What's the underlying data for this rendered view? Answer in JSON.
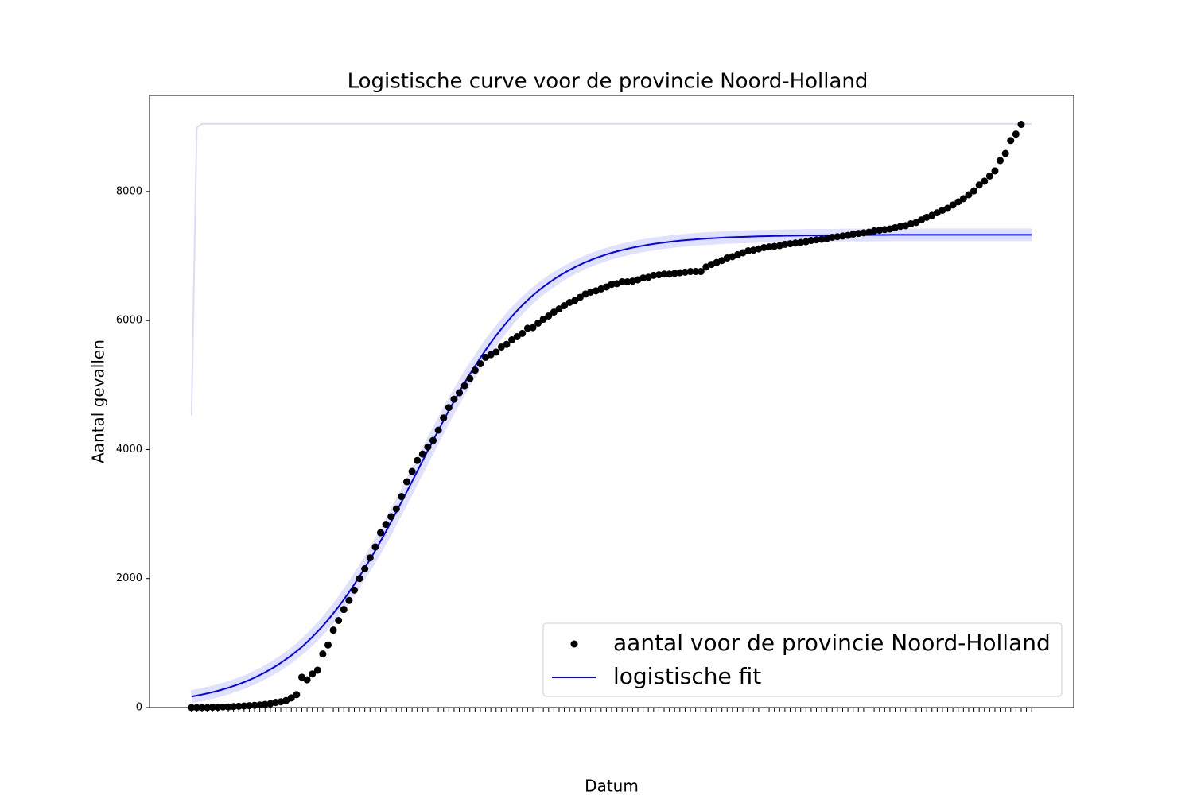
{
  "chart_data": {
    "type": "line",
    "title": "Logistische curve voor de provincie Noord-Holland",
    "x_label": "Datum",
    "y_label": "Aantal gevallen",
    "ylim": [
      0,
      9490
    ],
    "yticks": [
      0,
      2000,
      4000,
      6000,
      8000
    ],
    "legend": "lower right",
    "categories": [
      null,
      null,
      null,
      null,
      null,
      null,
      null,
      null,
      null,
      null,
      null,
      null,
      null,
      null,
      null,
      null,
      null,
      null,
      null,
      null,
      null,
      null,
      null,
      null,
      null,
      null,
      null,
      null,
      null,
      null,
      null,
      null,
      null,
      null,
      null,
      null,
      null,
      null,
      null,
      null,
      null,
      null,
      null,
      null,
      null,
      null,
      null,
      null,
      null,
      null,
      null,
      null,
      null,
      null,
      null,
      null,
      null,
      null,
      null,
      null,
      null,
      null,
      null,
      null,
      null,
      null,
      null,
      null,
      null,
      null,
      null,
      null,
      null,
      null,
      null,
      null,
      null,
      null,
      null,
      null,
      null,
      null,
      null,
      null,
      null,
      null,
      null,
      null,
      null,
      null,
      null,
      null,
      null,
      null,
      null,
      null,
      null,
      null,
      null,
      null,
      null,
      null,
      null,
      null,
      null,
      null,
      null,
      null,
      null,
      null,
      null,
      null,
      null,
      null,
      null,
      null,
      null,
      null,
      null,
      null,
      null,
      null,
      null,
      null,
      null,
      null,
      null,
      null,
      null,
      null,
      null,
      null,
      null,
      null,
      null,
      null,
      null,
      null,
      null,
      null,
      null,
      null,
      null,
      null,
      null,
      null,
      null,
      null,
      null,
      null,
      null,
      null,
      null,
      null,
      null,
      null,
      null,
      null,
      null,
      null,
      null
    ],
    "series": [
      {
        "values": [
          4530,
          8990,
          9050,
          9050,
          9050,
          9050,
          9050,
          9050,
          9050,
          9050,
          9050,
          9050,
          9050,
          9050,
          9050,
          9050,
          9050,
          9050,
          9050,
          9050,
          9050,
          9050,
          9050,
          9050,
          9050,
          9050,
          9050,
          9050,
          9050,
          9050,
          9050,
          9050,
          9050,
          9050,
          9050,
          9050,
          9050,
          9050,
          9050,
          9050,
          9050,
          9050,
          9050,
          9050,
          9050,
          9050,
          9050,
          9050,
          9050,
          9050,
          9050,
          9050,
          9050,
          9050,
          9050,
          9050,
          9050,
          9050,
          9050,
          9050,
          9050,
          9050,
          9050,
          9050,
          9050,
          9050,
          9050,
          9050,
          9050,
          9050,
          9050,
          9050,
          9050,
          9050,
          9050,
          9050,
          9050,
          9050,
          9050,
          9050,
          9050,
          9050,
          9050,
          9050,
          9050,
          9050,
          9050,
          9050,
          9050,
          9050,
          9050,
          9050,
          9050,
          9050,
          9050,
          9050,
          9050,
          9050,
          9050,
          9050,
          9050,
          9050,
          9050,
          9050,
          9050,
          9050,
          9050,
          9050,
          9050,
          9050,
          9050,
          9050,
          9050,
          9050,
          9050,
          9050,
          9050,
          9050,
          9050,
          9050,
          9050,
          9050,
          9050,
          9050,
          9050,
          9050,
          9050,
          9050,
          9050,
          9050,
          9050,
          9050,
          9050,
          9050,
          9050,
          9050,
          9050,
          9050,
          9050,
          9050,
          9050,
          9050,
          9050,
          9050,
          9050,
          9050,
          9050,
          9050,
          9050,
          9050,
          9050,
          9050,
          9050,
          9050,
          9050,
          9050,
          9050,
          9050,
          9050,
          9050,
          9050
        ],
        "color": "#dcdcf8",
        "mode": "line"
      },
      {
        "name": "logistische fit",
        "color": "#0000ff",
        "mode": "line",
        "values": [
          170,
          185,
          201,
          219,
          238,
          259,
          282,
          306,
          333,
          362,
          393,
          427,
          464,
          504,
          546,
          592,
          639,
          692,
          749,
          808,
          872,
          939,
          1015,
          1094,
          1178,
          1266,
          1360,
          1460,
          1563,
          1674,
          1788,
          1909,
          2036,
          2162,
          2297,
          2435,
          2581,
          2725,
          2880,
          3034,
          3190,
          3347,
          3506,
          3665,
          3824,
          3983,
          4140,
          4296,
          4450,
          4605,
          4749,
          4895,
          5033,
          5168,
          5294,
          5421,
          5542,
          5656,
          5767,
          5870,
          5970,
          6064,
          6152,
          6236,
          6315,
          6391,
          6458,
          6522,
          6581,
          6638,
          6691,
          6738,
          6784,
          6826,
          6866,
          6903,
          6937,
          6968,
          6997,
          7024,
          7048,
          7071,
          7092,
          7111,
          7129,
          7145,
          7160,
          7174,
          7187,
          7199,
          7209,
          7219,
          7229,
          7237,
          7245,
          7252,
          7258,
          7264,
          7270,
          7275,
          7279,
          7284,
          7288,
          7291,
          7294,
          7297,
          7300,
          7303,
          7305,
          7307,
          7309,
          7311,
          7312,
          7314,
          7315,
          7316,
          7318,
          7319,
          7320,
          7320,
          7321,
          7322,
          7323,
          7323,
          7324,
          7325,
          7325,
          7326,
          7326,
          7326,
          7327,
          7327,
          7327,
          7328,
          7328,
          7328,
          7328,
          7329,
          7329,
          7329,
          7329,
          7329,
          7329,
          7329,
          7329,
          7329,
          7329,
          7329,
          7329,
          7329,
          7329,
          7329,
          7329,
          7329,
          7329,
          7329,
          7329,
          7329,
          7329,
          7329,
          7329
        ]
      },
      {
        "name": "aantal voor de provincie Noord-Holland",
        "color": "#000000",
        "mode": "markers",
        "values": [
          0,
          0,
          0,
          0,
          5,
          5,
          10,
          10,
          15,
          20,
          25,
          30,
          35,
          40,
          50,
          60,
          80,
          90,
          110,
          150,
          200,
          470,
          430,
          520,
          580,
          830,
          970,
          1200,
          1350,
          1520,
          1660,
          1820,
          2000,
          2150,
          2320,
          2490,
          2710,
          2840,
          2960,
          3080,
          3270,
          3500,
          3660,
          3830,
          3930,
          4040,
          4140,
          4300,
          4490,
          4650,
          4780,
          4880,
          4990,
          5100,
          5230,
          5330,
          5430,
          5470,
          5510,
          5590,
          5630,
          5700,
          5750,
          5800,
          5880,
          5890,
          5960,
          6020,
          6070,
          6130,
          6180,
          6230,
          6280,
          6310,
          6360,
          6410,
          6440,
          6460,
          6490,
          6520,
          6560,
          6570,
          6600,
          6600,
          6610,
          6630,
          6660,
          6670,
          6700,
          6710,
          6720,
          6720,
          6730,
          6740,
          6750,
          6760,
          6760,
          6760,
          6830,
          6870,
          6900,
          6930,
          6970,
          6990,
          7020,
          7050,
          7080,
          7090,
          7110,
          7130,
          7140,
          7150,
          7160,
          7180,
          7190,
          7200,
          7210,
          7220,
          7240,
          7250,
          7260,
          7270,
          7290,
          7300,
          7310,
          7320,
          7340,
          7350,
          7360,
          7370,
          7390,
          7400,
          7410,
          7420,
          7440,
          7460,
          7470,
          7500,
          7520,
          7560,
          7600,
          7630,
          7670,
          7710,
          7740,
          7790,
          7840,
          7890,
          7950,
          8010,
          8100,
          8160,
          8240,
          8320,
          8480,
          8590,
          8790,
          8890,
          9040,
          null,
          null
        ]
      }
    ]
  }
}
